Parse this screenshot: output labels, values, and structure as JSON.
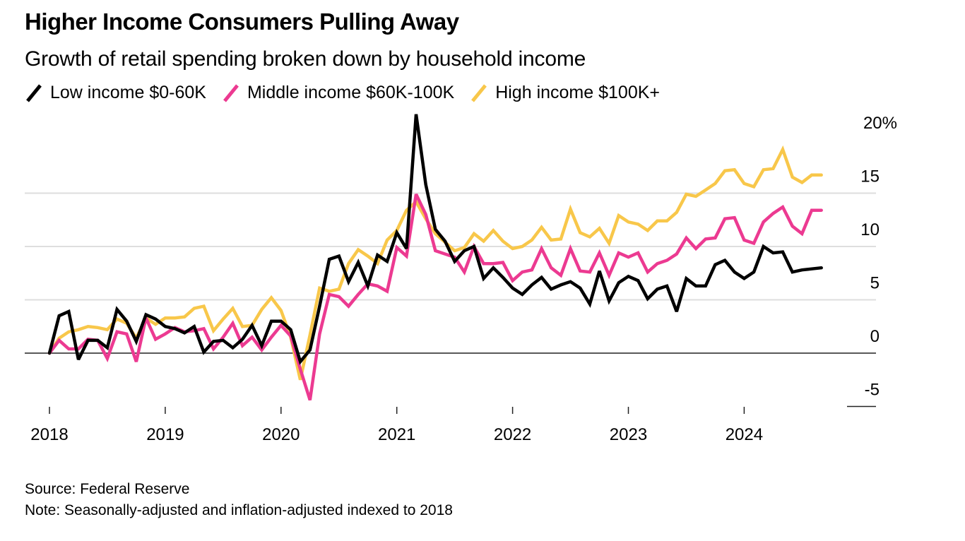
{
  "header": {
    "title": "Higher Income Consumers Pulling Away",
    "subtitle": "Growth of retail spending broken down by household income"
  },
  "legend": [
    {
      "label": "Low income $0-60K",
      "color": "#000000",
      "icon": "slash-line-icon"
    },
    {
      "label": "Middle income $60K-100K",
      "color": "#ec3a91",
      "icon": "slash-line-icon"
    },
    {
      "label": "High income $100K+",
      "color": "#f8c74a",
      "icon": "slash-line-icon"
    }
  ],
  "footer": {
    "source": "Source: Federal Reserve",
    "note": "Note: Seasonally-adjusted and inflation-adjusted indexed to 2018"
  },
  "chart_data": {
    "type": "line",
    "title": "Higher Income Consumers Pulling Away",
    "subtitle": "Growth of retail spending broken down by household income",
    "xlabel": "",
    "ylabel": "",
    "x_start": "2018-01",
    "frequency": "monthly",
    "x_ticks": [
      "2018",
      "2019",
      "2020",
      "2021",
      "2022",
      "2023",
      "2024"
    ],
    "y_ticks": [
      "-5",
      "0",
      "5",
      "10",
      "15",
      "20%"
    ],
    "ylim": [
      -5,
      20
    ],
    "grid": true,
    "y_axis_side": "right",
    "legend_position": "top-left",
    "series": [
      {
        "name": "Low income $0-60K",
        "color": "#000000",
        "values": [
          0.0,
          3.5,
          3.9,
          -0.6,
          1.2,
          1.2,
          0.5,
          4.1,
          3.0,
          1.1,
          3.6,
          3.2,
          2.5,
          2.3,
          1.9,
          2.5,
          0.1,
          1.1,
          1.2,
          0.5,
          1.3,
          2.6,
          0.7,
          3.0,
          3.0,
          2.2,
          -0.8,
          0.3,
          4.4,
          8.8,
          9.1,
          6.7,
          8.5,
          6.3,
          9.2,
          8.6,
          11.3,
          9.8,
          22.4,
          15.8,
          11.6,
          10.5,
          8.6,
          9.6,
          10.0,
          7.0,
          8.0,
          7.1,
          6.1,
          5.5,
          6.4,
          7.1,
          6.0,
          6.4,
          6.7,
          6.1,
          4.6,
          7.7,
          4.9,
          6.6,
          7.2,
          6.8,
          5.1,
          6.0,
          6.3,
          3.9,
          7.0,
          6.3,
          6.3,
          8.3,
          8.7,
          7.6,
          7.0,
          7.6,
          10.0,
          9.4,
          9.5,
          7.6,
          7.8,
          7.9,
          8.0
        ]
      },
      {
        "name": "Middle income $60K-100K",
        "color": "#ec3a91",
        "values": [
          0.0,
          1.2,
          0.4,
          0.4,
          1.3,
          1.2,
          -0.5,
          2.0,
          1.8,
          -0.8,
          3.3,
          1.3,
          1.8,
          2.4,
          2.0,
          2.1,
          2.3,
          0.4,
          1.5,
          2.8,
          0.7,
          1.5,
          0.3,
          1.5,
          2.6,
          1.6,
          -1.5,
          -4.4,
          1.8,
          5.5,
          5.3,
          4.4,
          5.5,
          6.5,
          6.3,
          5.8,
          9.9,
          9.1,
          14.9,
          13.0,
          9.6,
          9.3,
          9.0,
          7.6,
          10.0,
          8.4,
          8.4,
          8.5,
          6.8,
          7.6,
          7.8,
          9.8,
          8.0,
          7.3,
          9.8,
          7.7,
          7.6,
          9.4,
          7.3,
          9.4,
          9.0,
          9.4,
          7.6,
          8.4,
          8.7,
          9.3,
          10.8,
          9.8,
          10.7,
          10.8,
          12.6,
          12.7,
          10.6,
          10.3,
          12.3,
          13.1,
          13.7,
          11.9,
          11.2,
          13.4,
          13.4
        ]
      },
      {
        "name": "High income $100K+",
        "color": "#f8c74a",
        "values": [
          0.0,
          1.4,
          2.0,
          2.2,
          2.5,
          2.4,
          2.2,
          3.2,
          2.8,
          1.4,
          3.3,
          2.7,
          3.3,
          3.3,
          3.4,
          4.2,
          4.4,
          2.1,
          3.2,
          4.2,
          2.5,
          2.6,
          4.1,
          5.2,
          4.0,
          1.5,
          -2.5,
          1.7,
          6.1,
          5.8,
          6.0,
          8.4,
          9.7,
          9.1,
          8.4,
          10.6,
          11.5,
          13.4,
          14.2,
          12.6,
          11.2,
          10.4,
          9.6,
          9.9,
          11.2,
          10.5,
          11.5,
          10.5,
          9.8,
          10.0,
          10.6,
          11.8,
          10.6,
          10.7,
          13.5,
          11.3,
          10.9,
          11.7,
          10.3,
          12.9,
          12.3,
          12.1,
          11.5,
          12.4,
          12.4,
          13.2,
          14.9,
          14.7,
          15.3,
          15.9,
          17.1,
          17.2,
          15.9,
          15.6,
          17.2,
          17.3,
          19.1,
          16.5,
          16.0,
          16.7,
          16.7
        ]
      }
    ]
  }
}
